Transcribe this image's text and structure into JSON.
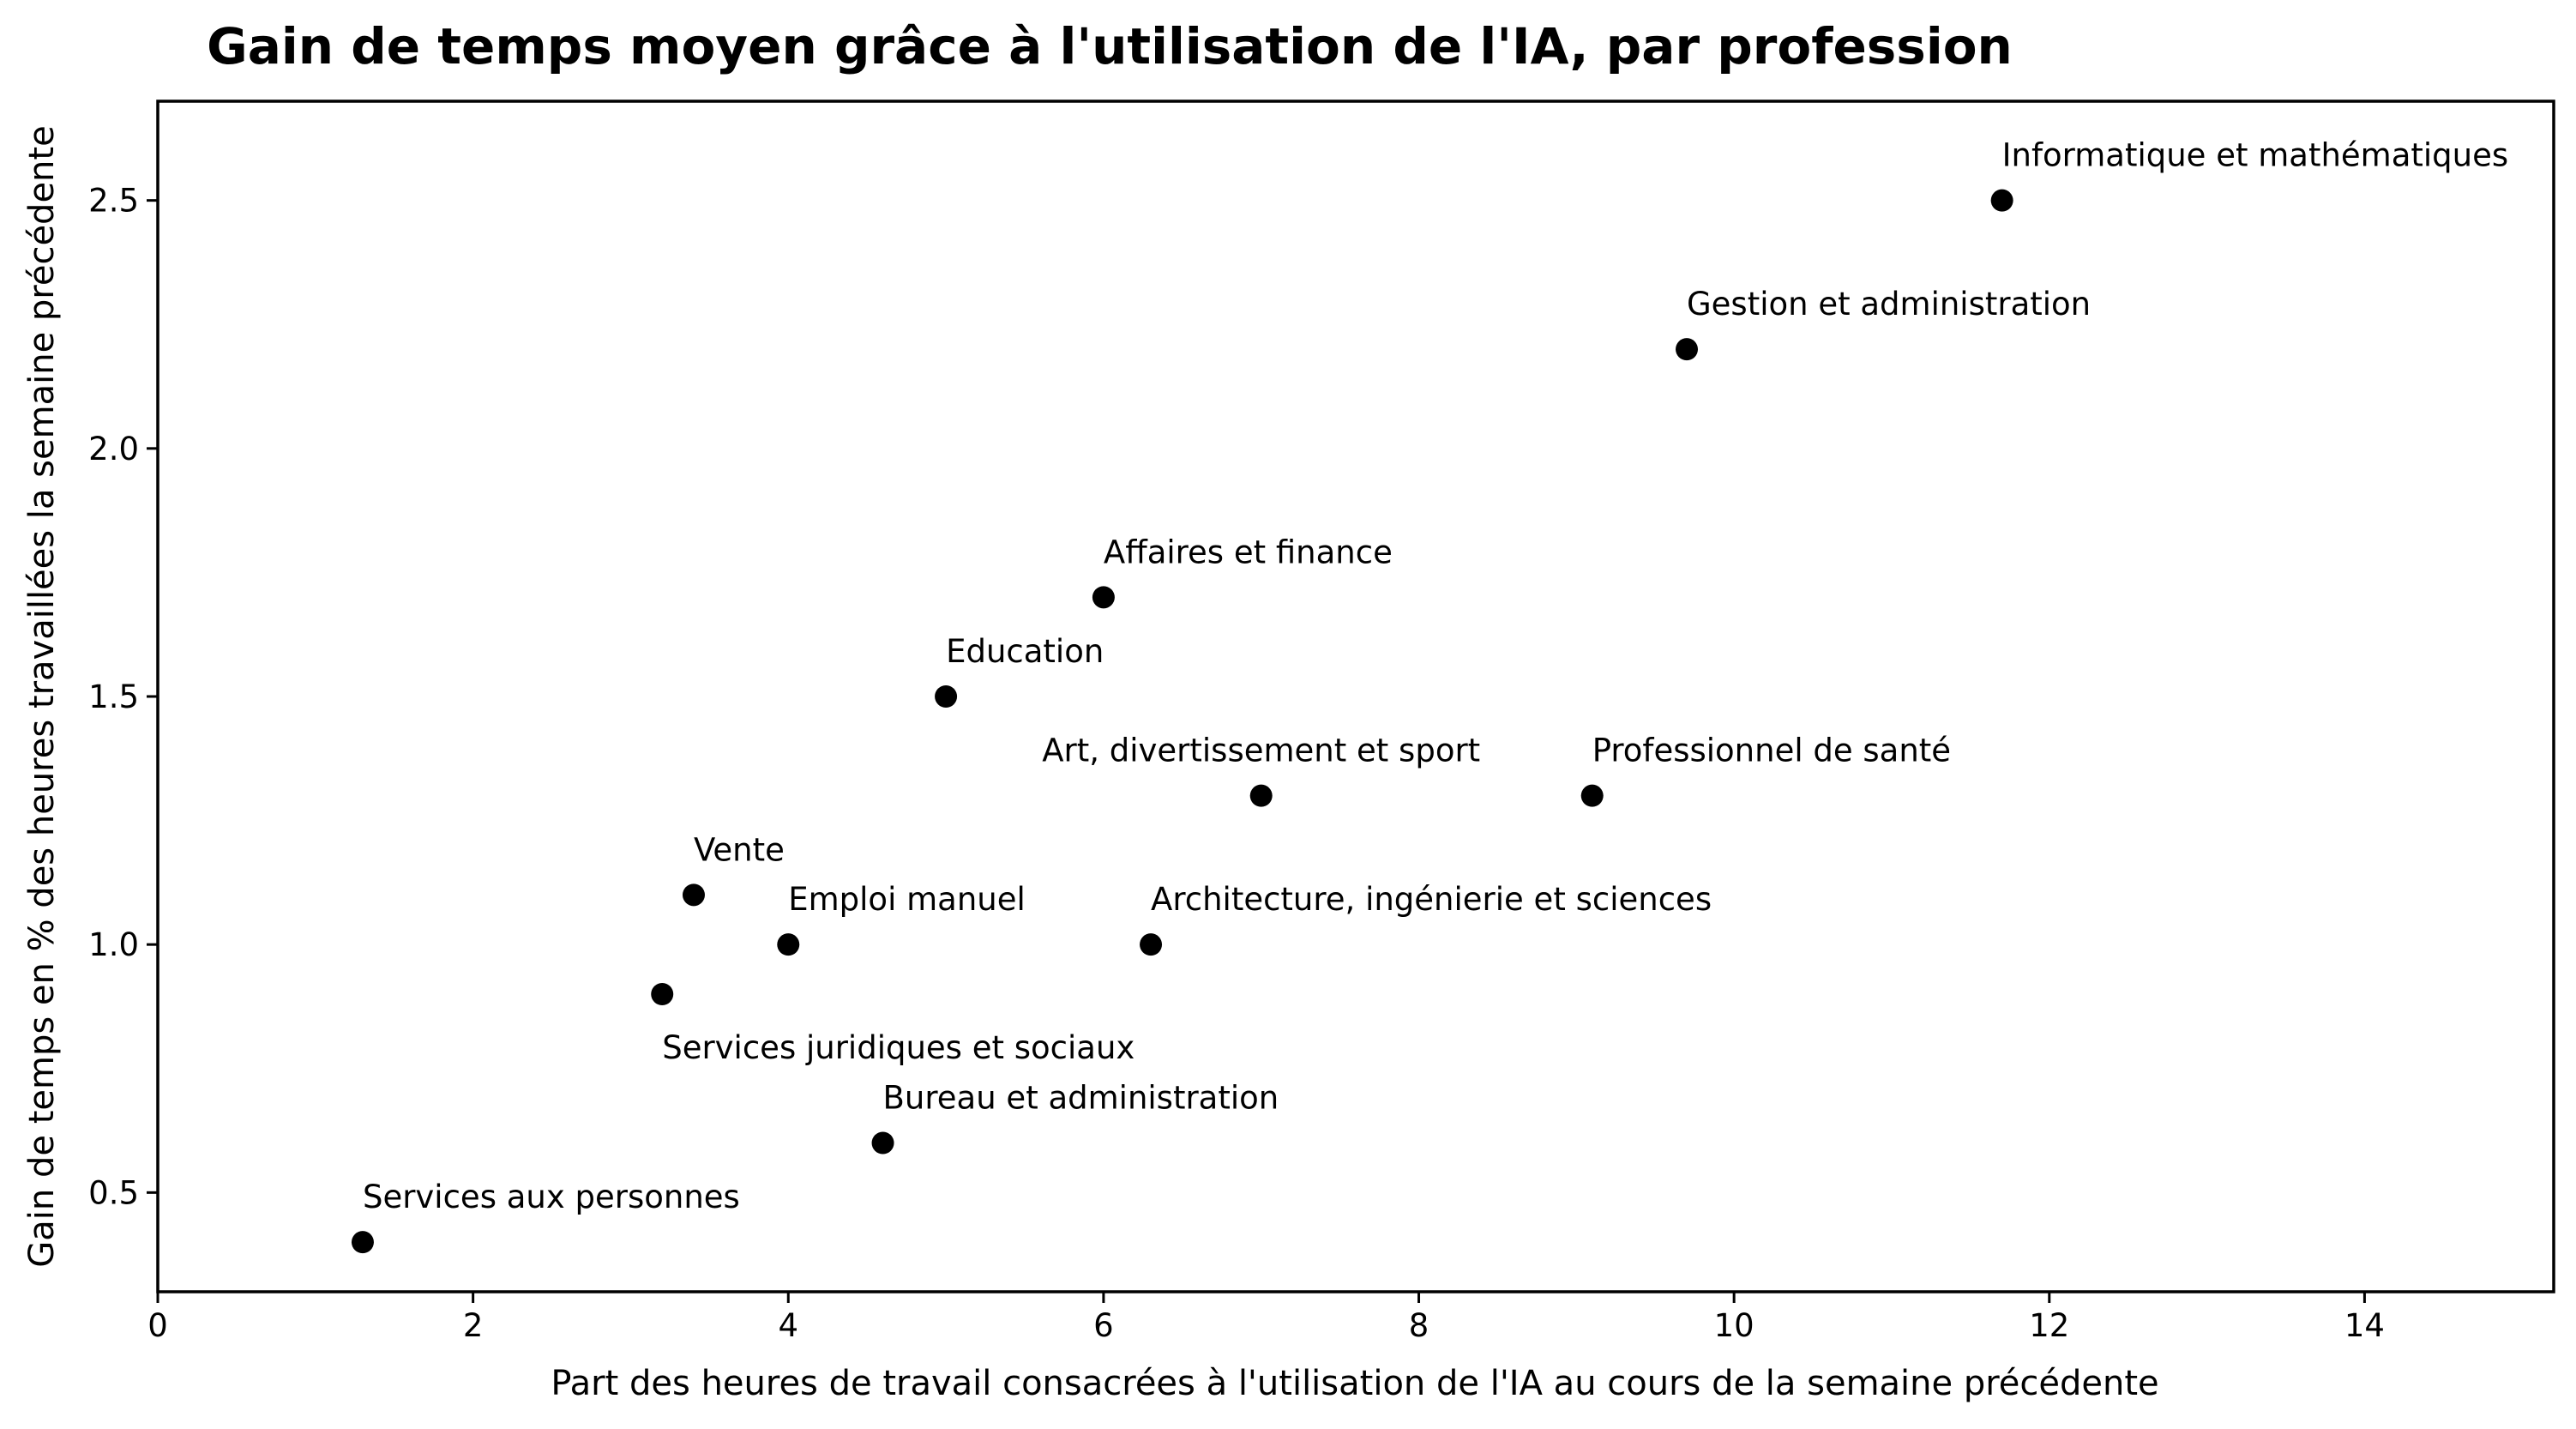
{
  "chart_data": {
    "type": "scatter",
    "title": "Gain de temps moyen grâce à l'utilisation de l'IA, par profession",
    "xlabel": "Part des heures de travail consacrées à l'utilisation de l'IA au cours de la semaine précédente",
    "ylabel": "Gain de temps en % des heures travaillées la semaine précédente",
    "xlim": [
      0,
      15.2
    ],
    "ylim": [
      0.3,
      2.7
    ],
    "x_ticks": [
      0,
      2,
      4,
      6,
      8,
      10,
      12,
      14
    ],
    "x_tick_labels": [
      "0",
      "2",
      "4",
      "6",
      "8",
      "10",
      "12",
      "14"
    ],
    "y_ticks": [
      0.5,
      1.0,
      1.5,
      2.0,
      2.5
    ],
    "y_tick_labels": [
      "0.5",
      "1.0",
      "1.5",
      "2.0",
      "2.5"
    ],
    "grid": false,
    "point_color": "#000000",
    "points": [
      {
        "label": "Informatique et mathématiques",
        "x": 11.7,
        "y": 2.5,
        "label_position": "above-right"
      },
      {
        "label": "Gestion et administration",
        "x": 9.7,
        "y": 2.2,
        "label_position": "above-right"
      },
      {
        "label": "Affaires et finance",
        "x": 6.0,
        "y": 1.7,
        "label_position": "above-right"
      },
      {
        "label": "Education",
        "x": 5.0,
        "y": 1.5,
        "label_position": "above-right"
      },
      {
        "label": "Art, divertissement et sport",
        "x": 7.0,
        "y": 1.3,
        "label_position": "above-center"
      },
      {
        "label": "Professionnel de santé",
        "x": 9.1,
        "y": 1.3,
        "label_position": "above-right"
      },
      {
        "label": "Vente",
        "x": 3.4,
        "y": 1.1,
        "label_position": "above-right"
      },
      {
        "label": "Emploi manuel",
        "x": 4.0,
        "y": 1.0,
        "label_position": "above-right"
      },
      {
        "label": "Architecture, ingénierie et sciences",
        "x": 6.3,
        "y": 1.0,
        "label_position": "above-right"
      },
      {
        "label": "Services juridiques et sociaux",
        "x": 3.2,
        "y": 0.9,
        "label_position": "below-right"
      },
      {
        "label": "Bureau et administration",
        "x": 4.6,
        "y": 0.6,
        "label_position": "above-right"
      },
      {
        "label": "Services aux personnes",
        "x": 1.3,
        "y": 0.4,
        "label_position": "above-right"
      }
    ]
  }
}
